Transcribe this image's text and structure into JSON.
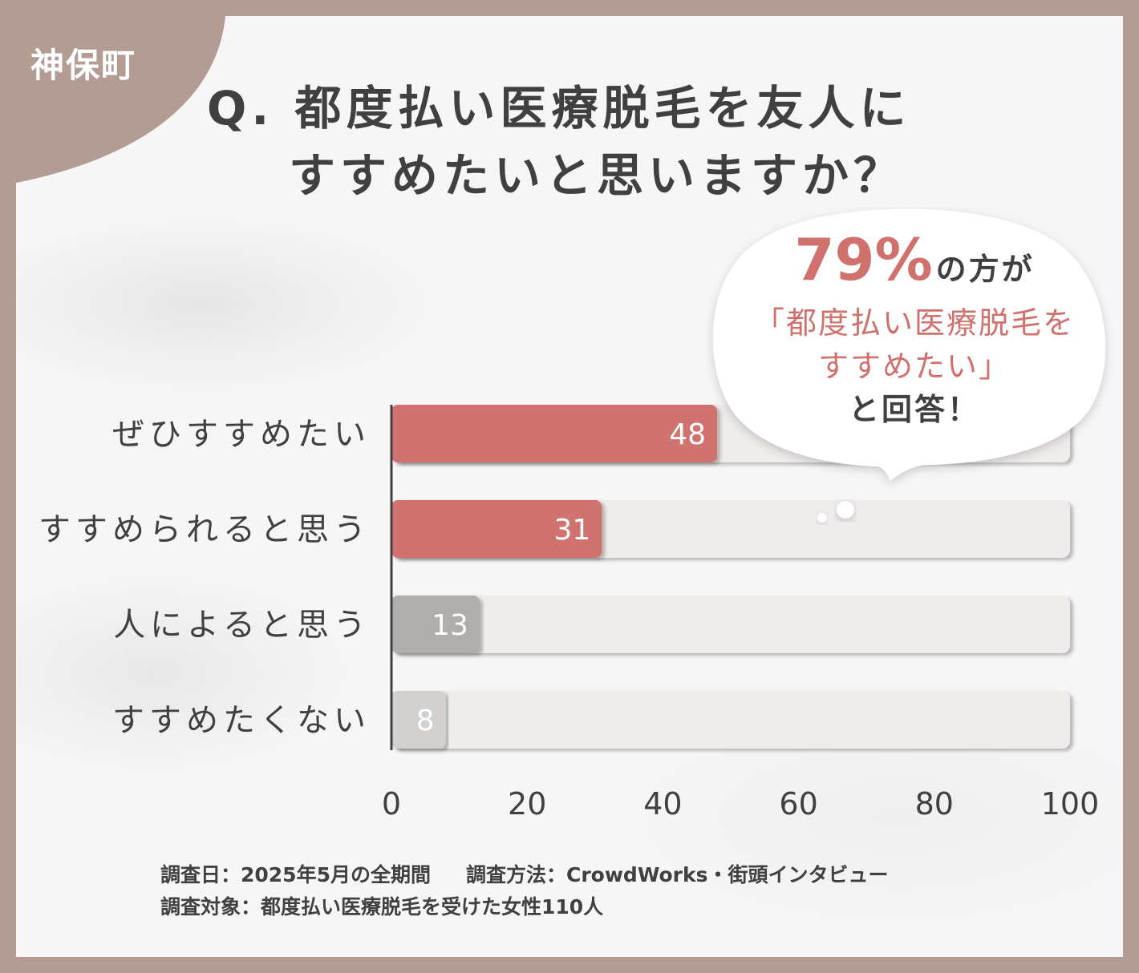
{
  "tag": {
    "location": "神保町"
  },
  "title": {
    "line1": "Q. 都度払い医療脱毛を友人に",
    "line2": "すすめたいと思いますか？"
  },
  "callout": {
    "percent": "79%",
    "suffix": "の方が",
    "line2": "「都度払い医療脱毛を",
    "line3": "すすめたい」",
    "line4": "と回答！"
  },
  "chart_data": {
    "type": "bar",
    "orientation": "horizontal",
    "categories": [
      "ぜひすすめたい",
      "すすめられると思う",
      "人によると思う",
      "すすめたくない"
    ],
    "values": [
      48,
      31,
      13,
      8
    ],
    "xlim": [
      0,
      100
    ],
    "x_ticks": [
      0,
      20,
      40,
      60,
      80,
      100
    ],
    "bar_colors": [
      "#d0736f",
      "#d0736f",
      "#b0adab",
      "#d3d1d0"
    ],
    "track_color": "#efeceb"
  },
  "footnotes": {
    "date": "調査日：2025年5月の全期間",
    "method": "調査方法：CrowdWorks・街頭インタビュー",
    "target": "調査対象：都度払い医療脱毛を受けた女性110人"
  }
}
